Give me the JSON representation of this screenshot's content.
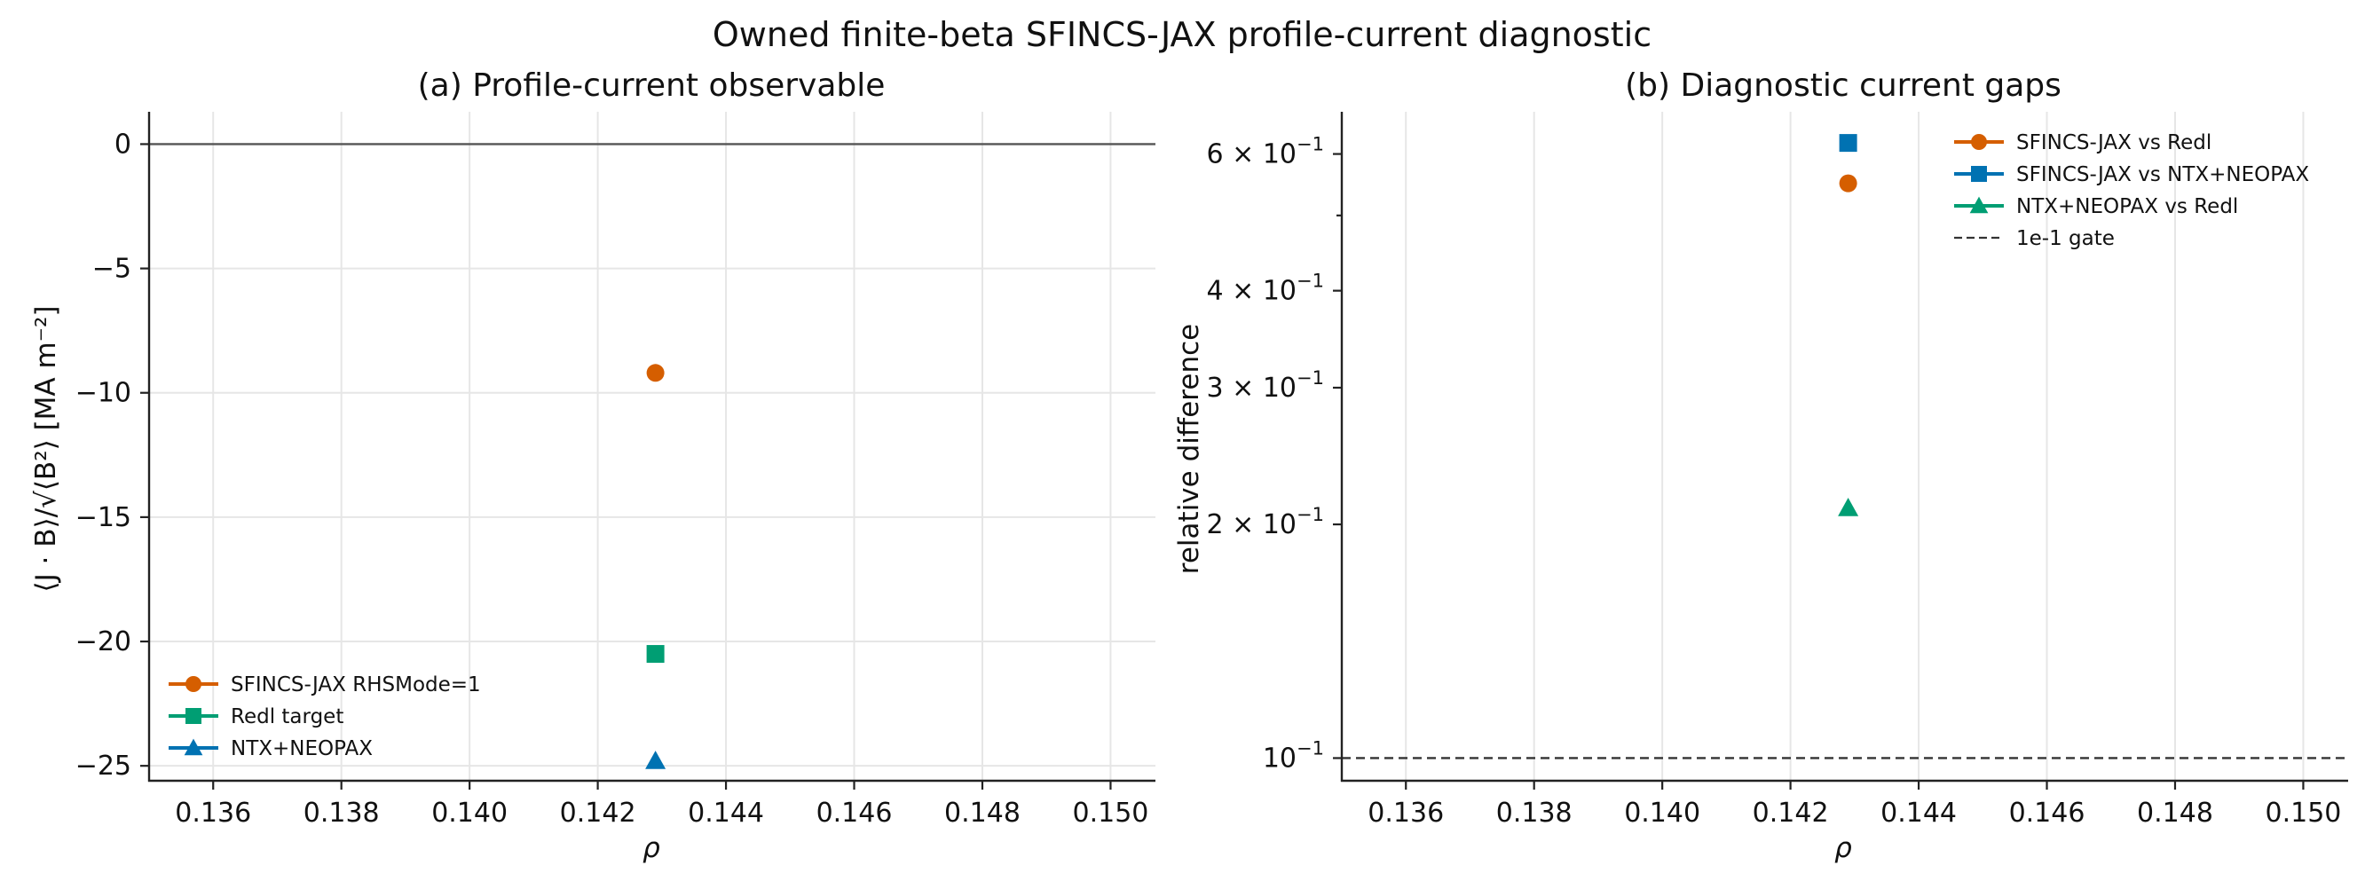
{
  "title": "Owned finite-beta SFINCS-JAX profile-current diagnostic",
  "colors": {
    "orange": "#d55e00",
    "green": "#009e73",
    "blue": "#0072b2",
    "zero_line": "#555555",
    "gate_line": "#333333"
  },
  "chart_data": [
    {
      "panel_title": "(a) Profile-current observable",
      "type": "scatter",
      "xlabel": "ρ",
      "ylabel": "⟨J · B⟩/√⟨B²⟩ [MA m⁻²]",
      "xlim": [
        0.135,
        0.1507
      ],
      "ylim": [
        -25.6,
        1.3
      ],
      "yscale": "linear",
      "grid": true,
      "legend_location": "lower-left",
      "x_ticks": [
        0.136,
        0.138,
        0.14,
        0.142,
        0.144,
        0.146,
        0.148,
        0.15
      ],
      "x_tick_labels": [
        "0.136",
        "0.138",
        "0.140",
        "0.142",
        "0.144",
        "0.146",
        "0.148",
        "0.150"
      ],
      "y_ticks": [
        0,
        -5,
        -10,
        -15,
        -20,
        -25
      ],
      "y_tick_labels": [
        "0",
        "−5",
        "−10",
        "−15",
        "−20",
        "−25"
      ],
      "reference_line": {
        "y": 0
      },
      "series": [
        {
          "name": "SFINCS-JAX RHSMode=1",
          "color": "#d55e00",
          "marker": "circle",
          "x": [
            0.1429
          ],
          "y": [
            -9.2
          ]
        },
        {
          "name": "Redl target",
          "color": "#009e73",
          "marker": "square",
          "x": [
            0.1429
          ],
          "y": [
            -20.5
          ]
        },
        {
          "name": "NTX+NEOPAX",
          "color": "#0072b2",
          "marker": "triangle",
          "x": [
            0.1429
          ],
          "y": [
            -24.8
          ]
        }
      ]
    },
    {
      "panel_title": "(b) Diagnostic current gaps",
      "type": "scatter",
      "xlabel": "ρ",
      "ylabel": "relative difference",
      "xlim": [
        0.135,
        0.1507
      ],
      "ylim": [
        0.0935,
        0.68
      ],
      "yscale": "log",
      "grid": true,
      "legend_location": "upper-right",
      "x_ticks": [
        0.136,
        0.138,
        0.14,
        0.142,
        0.144,
        0.146,
        0.148,
        0.15
      ],
      "x_tick_labels": [
        "0.136",
        "0.138",
        "0.140",
        "0.142",
        "0.144",
        "0.146",
        "0.148",
        "0.150"
      ],
      "y_major_ticks": [
        0.1,
        0.2,
        0.3,
        0.4,
        0.6
      ],
      "y_tick_labels": [
        {
          "mantissa": "",
          "base": "10",
          "exp": "−1"
        },
        {
          "mantissa": "2 × ",
          "base": "10",
          "exp": "−1"
        },
        {
          "mantissa": "3 × ",
          "base": "10",
          "exp": "−1"
        },
        {
          "mantissa": "4 × ",
          "base": "10",
          "exp": "−1"
        },
        {
          "mantissa": "6 × ",
          "base": "10",
          "exp": "−1"
        }
      ],
      "y_minor_ticks": [
        0.5
      ],
      "threshold": {
        "name": "1e-1 gate",
        "y": 0.1
      },
      "series": [
        {
          "name": "SFINCS-JAX vs Redl",
          "color": "#d55e00",
          "marker": "circle",
          "x": [
            0.1429
          ],
          "y": [
            0.55
          ]
        },
        {
          "name": "SFINCS-JAX vs NTX+NEOPAX",
          "color": "#0072b2",
          "marker": "square",
          "x": [
            0.1429
          ],
          "y": [
            0.62
          ]
        },
        {
          "name": "NTX+NEOPAX vs Redl",
          "color": "#009e73",
          "marker": "triangle",
          "x": [
            0.1429
          ],
          "y": [
            0.21
          ]
        }
      ]
    }
  ]
}
